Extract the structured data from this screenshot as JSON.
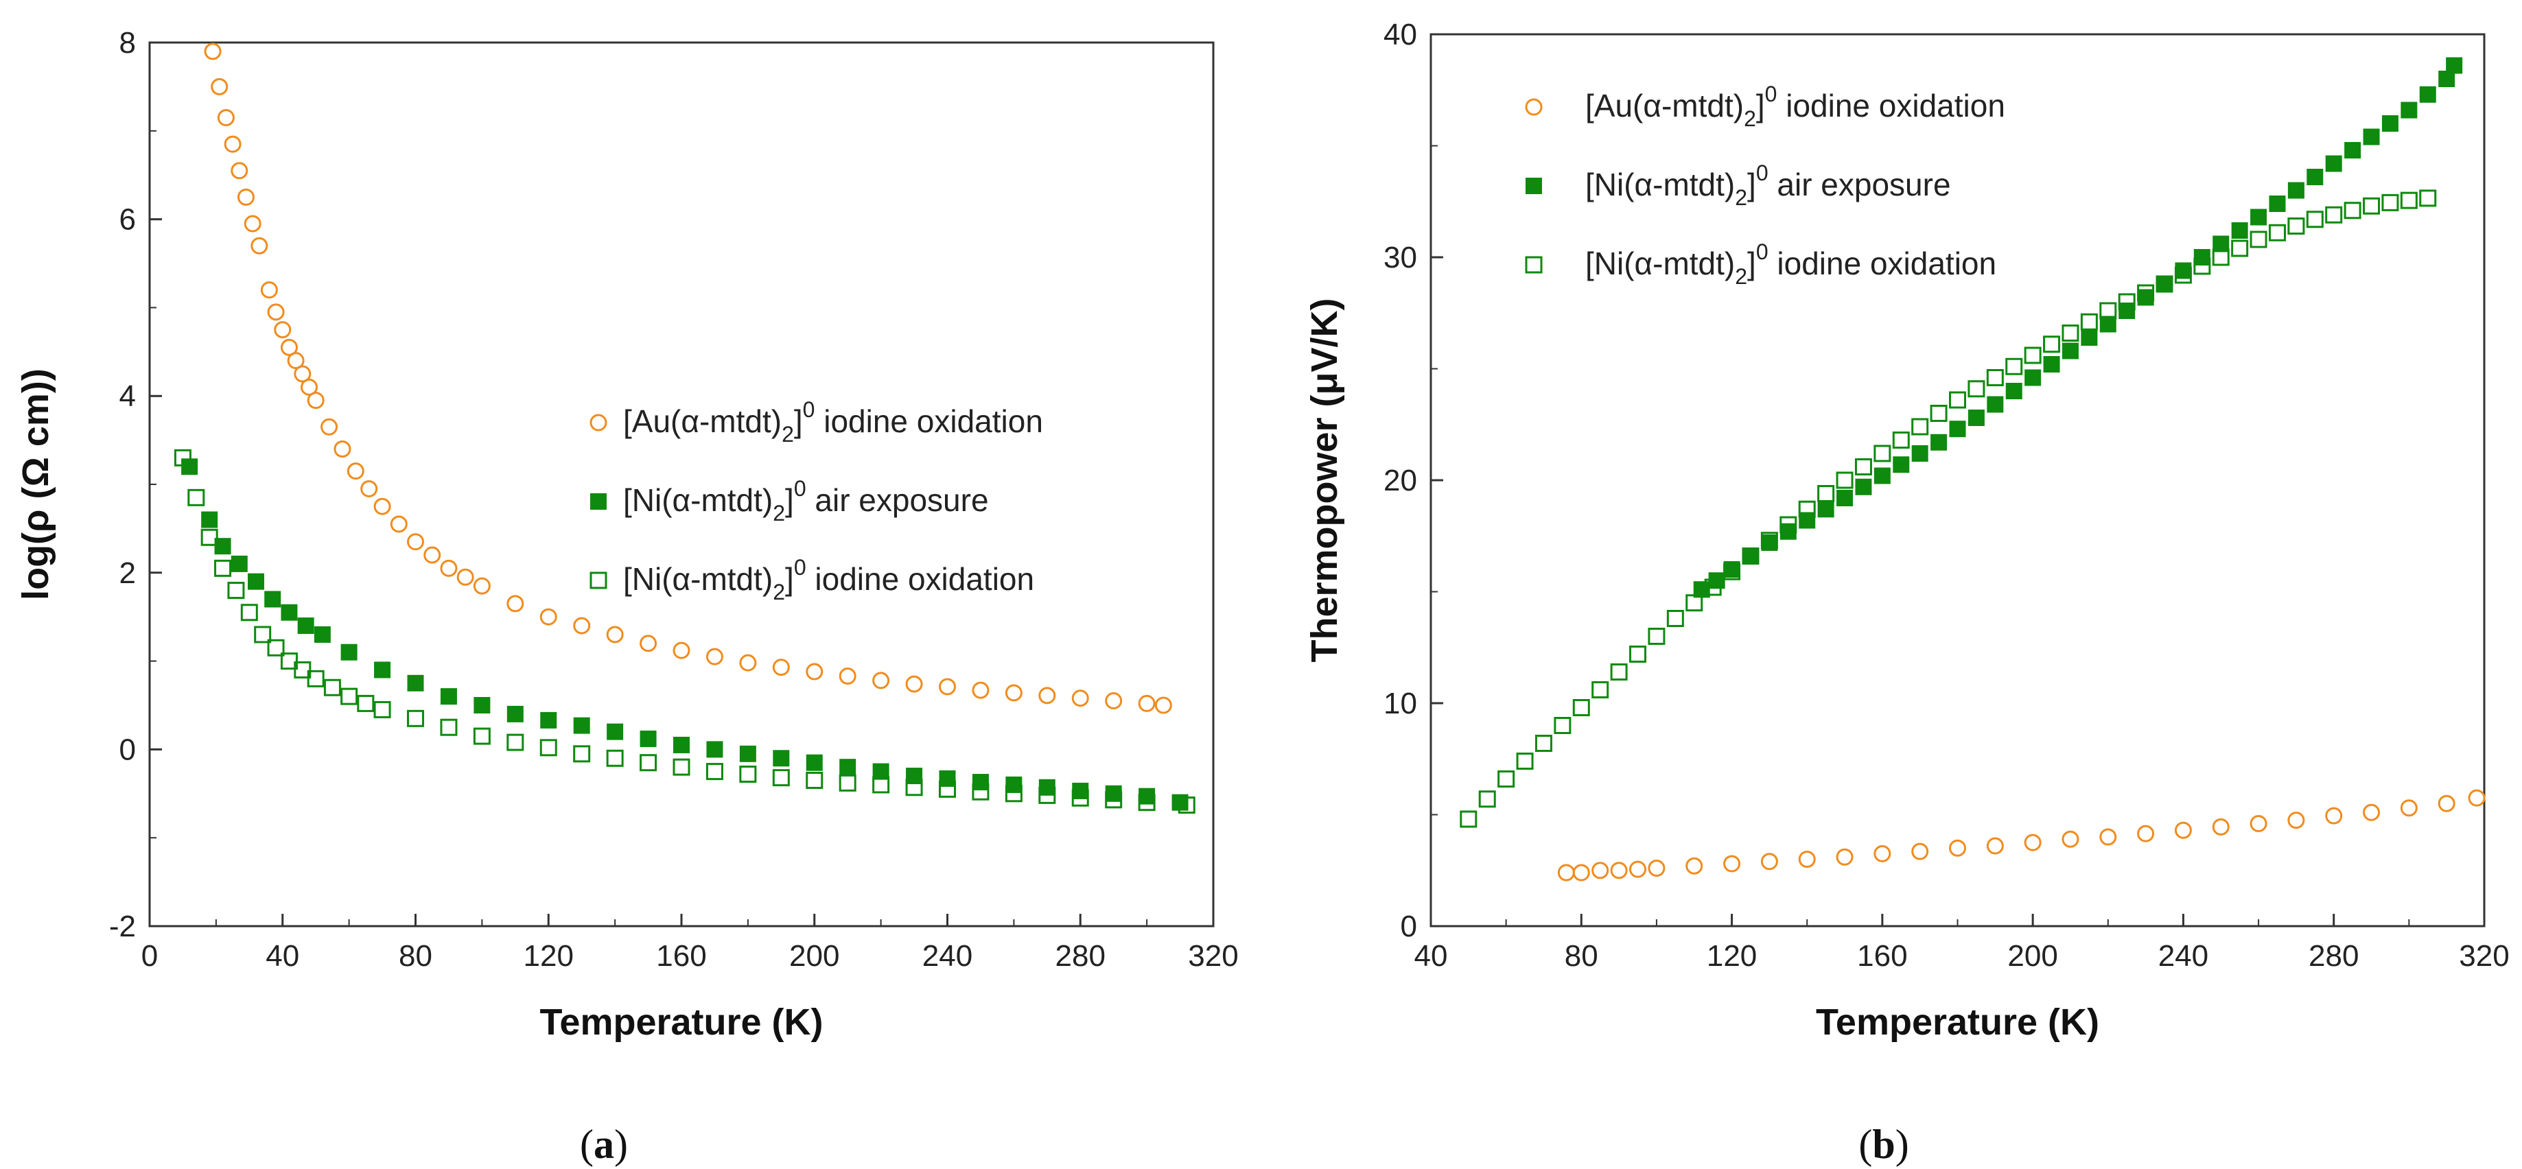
{
  "colors": {
    "au_iodine": "#F08C1E",
    "ni_air": "#0E8A0E",
    "ni_iodine": "#0E8A0E"
  },
  "chart_data": [
    {
      "type": "scatter",
      "panel": "(a)",
      "panel_letter": "a",
      "title": "",
      "xlabel": "Temperature (K)",
      "ylabel": "log(ρ (Ω cm))",
      "xlim": [
        0,
        320
      ],
      "ylim": [
        -2,
        8
      ],
      "xticks": [
        "0",
        "40",
        "80",
        "120",
        "160",
        "200",
        "240",
        "280",
        "320"
      ],
      "yticks": [
        "-2",
        "0",
        "2",
        "4",
        "6",
        "8"
      ],
      "legend_position": "center-right",
      "series": [
        {
          "name": "[Au(α-mtdt)2]0 iodine oxidation",
          "legend_parts": [
            "[Au(α-mtdt)",
            "2",
            "]",
            "0",
            " iodine oxidation"
          ],
          "marker": "open-circle",
          "color_key": "au_iodine",
          "x": [
            19,
            21,
            23,
            25,
            27,
            29,
            31,
            33,
            36,
            38,
            40,
            42,
            44,
            46,
            48,
            50,
            54,
            58,
            62,
            66,
            70,
            75,
            80,
            85,
            90,
            95,
            100,
            110,
            120,
            130,
            140,
            150,
            160,
            170,
            180,
            190,
            200,
            210,
            220,
            230,
            240,
            250,
            260,
            270,
            280,
            290,
            300,
            305
          ],
          "y": [
            7.9,
            7.5,
            7.15,
            6.85,
            6.55,
            6.25,
            5.95,
            5.7,
            5.2,
            4.95,
            4.75,
            4.55,
            4.4,
            4.25,
            4.1,
            3.95,
            3.65,
            3.4,
            3.15,
            2.95,
            2.75,
            2.55,
            2.35,
            2.2,
            2.05,
            1.95,
            1.85,
            1.65,
            1.5,
            1.4,
            1.3,
            1.2,
            1.12,
            1.05,
            0.98,
            0.93,
            0.88,
            0.83,
            0.78,
            0.74,
            0.71,
            0.67,
            0.64,
            0.61,
            0.58,
            0.55,
            0.52,
            0.5
          ]
        },
        {
          "name": "[Ni(α-mtdt)2]0 air exposure",
          "legend_parts": [
            "[Ni(α-mtdt)",
            "2",
            "]",
            "0",
            " air exposure"
          ],
          "marker": "filled-square",
          "color_key": "ni_air",
          "x": [
            12,
            18,
            22,
            27,
            32,
            37,
            42,
            47,
            52,
            60,
            70,
            80,
            90,
            100,
            110,
            120,
            130,
            140,
            150,
            160,
            170,
            180,
            190,
            200,
            210,
            220,
            230,
            240,
            250,
            260,
            270,
            280,
            290,
            300,
            310
          ],
          "y": [
            3.2,
            2.6,
            2.3,
            2.1,
            1.9,
            1.7,
            1.55,
            1.4,
            1.3,
            1.1,
            0.9,
            0.75,
            0.6,
            0.5,
            0.4,
            0.33,
            0.27,
            0.2,
            0.12,
            0.05,
            0.0,
            -0.05,
            -0.1,
            -0.15,
            -0.2,
            -0.25,
            -0.3,
            -0.33,
            -0.37,
            -0.4,
            -0.43,
            -0.47,
            -0.5,
            -0.53,
            -0.6
          ]
        },
        {
          "name": "[Ni(α-mtdt)2]0 iodine oxidation",
          "legend_parts": [
            "[Ni(α-mtdt)",
            "2",
            "]",
            "0",
            " iodine oxidation"
          ],
          "marker": "open-square",
          "color_key": "ni_iodine",
          "x": [
            10,
            14,
            18,
            22,
            26,
            30,
            34,
            38,
            42,
            46,
            50,
            55,
            60,
            65,
            70,
            80,
            90,
            100,
            110,
            120,
            130,
            140,
            150,
            160,
            170,
            180,
            190,
            200,
            210,
            220,
            230,
            240,
            250,
            260,
            270,
            280,
            290,
            300,
            312
          ],
          "y": [
            3.3,
            2.85,
            2.4,
            2.05,
            1.8,
            1.55,
            1.3,
            1.15,
            1.0,
            0.9,
            0.8,
            0.7,
            0.6,
            0.52,
            0.45,
            0.35,
            0.25,
            0.15,
            0.08,
            0.02,
            -0.05,
            -0.1,
            -0.15,
            -0.2,
            -0.25,
            -0.28,
            -0.32,
            -0.35,
            -0.38,
            -0.4,
            -0.43,
            -0.45,
            -0.48,
            -0.5,
            -0.52,
            -0.55,
            -0.57,
            -0.6,
            -0.63
          ]
        }
      ]
    },
    {
      "type": "scatter",
      "panel": "(b)",
      "panel_letter": "b",
      "title": "",
      "xlabel": "Temperature (K)",
      "ylabel": "Thermopower (μV/K)",
      "xlim": [
        40,
        320
      ],
      "ylim": [
        0,
        40
      ],
      "xticks": [
        "40",
        "80",
        "120",
        "160",
        "200",
        "240",
        "280",
        "320"
      ],
      "yticks": [
        "0",
        "10",
        "20",
        "30",
        "40"
      ],
      "legend_position": "top-left",
      "series": [
        {
          "name": "[Au(α-mtdt)2]0 iodine oxidation",
          "legend_parts": [
            "[Au(α-mtdt)",
            "2",
            "]",
            "0",
            " iodine oxidation"
          ],
          "marker": "open-circle",
          "color_key": "au_iodine",
          "x": [
            76,
            80,
            85,
            90,
            95,
            100,
            110,
            120,
            130,
            140,
            150,
            160,
            170,
            180,
            190,
            200,
            210,
            220,
            230,
            240,
            250,
            260,
            270,
            280,
            290,
            300,
            310,
            318
          ],
          "y": [
            2.4,
            2.4,
            2.5,
            2.5,
            2.55,
            2.6,
            2.7,
            2.8,
            2.9,
            3.0,
            3.1,
            3.25,
            3.35,
            3.5,
            3.6,
            3.75,
            3.9,
            4.0,
            4.15,
            4.3,
            4.45,
            4.6,
            4.75,
            4.95,
            5.1,
            5.3,
            5.5,
            5.75
          ]
        },
        {
          "name": "[Ni(α-mtdt)2]0 air exposure",
          "legend_parts": [
            "[Ni(α-mtdt)",
            "2",
            "]",
            "0",
            " air exposure"
          ],
          "marker": "filled-square",
          "color_key": "ni_air",
          "x": [
            112,
            116,
            120,
            125,
            130,
            135,
            140,
            145,
            150,
            155,
            160,
            165,
            170,
            175,
            180,
            185,
            190,
            195,
            200,
            205,
            210,
            215,
            220,
            225,
            230,
            235,
            240,
            245,
            250,
            255,
            260,
            265,
            270,
            275,
            280,
            285,
            290,
            295,
            300,
            305,
            310,
            312
          ],
          "y": [
            15.1,
            15.5,
            16.0,
            16.6,
            17.2,
            17.7,
            18.2,
            18.7,
            19.2,
            19.7,
            20.2,
            20.7,
            21.2,
            21.7,
            22.3,
            22.8,
            23.4,
            24.0,
            24.6,
            25.2,
            25.8,
            26.4,
            27.0,
            27.6,
            28.2,
            28.8,
            29.4,
            30.0,
            30.6,
            31.2,
            31.8,
            32.4,
            33.0,
            33.6,
            34.2,
            34.8,
            35.4,
            36.0,
            36.6,
            37.3,
            38.0,
            38.6
          ]
        },
        {
          "name": "[Ni(α-mtdt)2]0 iodine oxidation",
          "legend_parts": [
            "[Ni(α-mtdt)",
            "2",
            "]",
            "0",
            " iodine oxidation"
          ],
          "marker": "open-square",
          "color_key": "ni_iodine",
          "x": [
            50,
            55,
            60,
            65,
            70,
            75,
            80,
            85,
            90,
            95,
            100,
            105,
            110,
            115,
            120,
            125,
            130,
            135,
            140,
            145,
            150,
            155,
            160,
            165,
            170,
            175,
            180,
            185,
            190,
            195,
            200,
            205,
            210,
            215,
            220,
            225,
            230,
            235,
            240,
            245,
            250,
            255,
            260,
            265,
            270,
            275,
            280,
            285,
            290,
            295,
            300,
            305
          ],
          "y": [
            4.8,
            5.7,
            6.6,
            7.4,
            8.2,
            9.0,
            9.8,
            10.6,
            11.4,
            12.2,
            13.0,
            13.8,
            14.5,
            15.2,
            15.9,
            16.6,
            17.3,
            18.0,
            18.7,
            19.4,
            20.0,
            20.6,
            21.2,
            21.8,
            22.4,
            23.0,
            23.6,
            24.1,
            24.6,
            25.1,
            25.6,
            26.1,
            26.6,
            27.1,
            27.6,
            28.0,
            28.4,
            28.8,
            29.2,
            29.6,
            30.0,
            30.4,
            30.8,
            31.1,
            31.4,
            31.7,
            31.9,
            32.1,
            32.3,
            32.45,
            32.55,
            32.65
          ]
        }
      ]
    }
  ]
}
